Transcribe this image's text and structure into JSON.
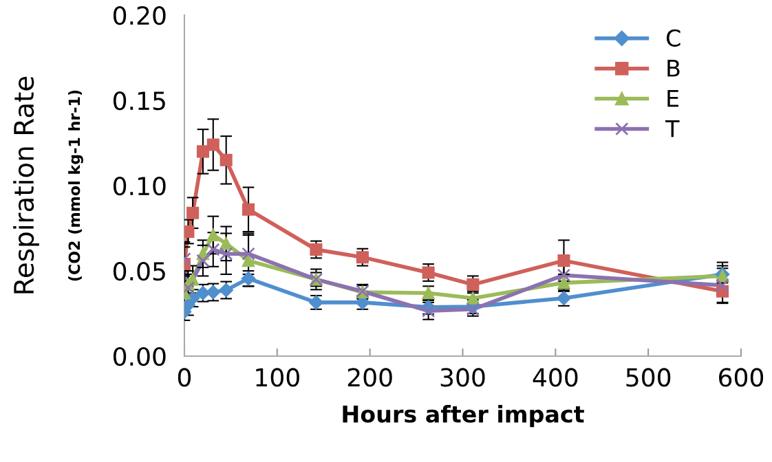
{
  "chart_data": {
    "type": "line",
    "xlabel": "Hours after impact",
    "ylabel": "Respiration Rate\n(CO2 (mmol kg-1 hr-1)",
    "xlim": [
      0,
      600
    ],
    "xticks": [
      0,
      100,
      200,
      300,
      400,
      500,
      600
    ],
    "ylim": [
      0,
      0.2
    ],
    "yticks": [
      {
        "value": 0,
        "label": "0.00"
      },
      {
        "value": 0.05,
        "label": "0.05"
      },
      {
        "value": 0.1,
        "label": "0.10"
      },
      {
        "value": 0.15,
        "label": "0.15"
      },
      {
        "value": 0.2,
        "label": "0.20"
      }
    ],
    "legend": "top right",
    "grid": false,
    "line_style": "solid",
    "series": [
      {
        "name": "C",
        "color": "#4f8fce",
        "marker": "diamond",
        "x": [
          0,
          4,
          9,
          20,
          31,
          45,
          69,
          142,
          192,
          263,
          311,
          409,
          580
        ],
        "values": [
          0.026,
          0.03,
          0.034,
          0.037,
          0.0375,
          0.0387,
          0.0455,
          0.0315,
          0.0315,
          0.0287,
          0.029,
          0.034,
          0.048
        ],
        "errors": [
          0.005,
          0.006,
          0.005,
          0.005,
          0.005,
          0.005,
          0.0045,
          0.004,
          0.004,
          0.004,
          0.004,
          0.0045,
          0.005
        ]
      },
      {
        "name": "B",
        "color": "#d0605a",
        "marker": "square",
        "x": [
          0,
          4,
          9,
          20,
          31,
          45,
          69,
          142,
          192,
          263,
          311,
          409,
          580
        ],
        "values": [
          0.054,
          0.073,
          0.084,
          0.12,
          0.124,
          0.115,
          0.086,
          0.0625,
          0.058,
          0.049,
          0.042,
          0.056,
          0.038
        ],
        "errors": [
          0.01,
          0.007,
          0.009,
          0.013,
          0.015,
          0.014,
          0.013,
          0.005,
          0.005,
          0.005,
          0.005,
          0.012,
          0.007
        ]
      },
      {
        "name": "E",
        "color": "#9bbb59",
        "marker": "triangle",
        "x": [
          0,
          4,
          9,
          20,
          31,
          45,
          69,
          142,
          192,
          263,
          311,
          409,
          580
        ],
        "values": [
          0.037,
          0.042,
          0.045,
          0.06,
          0.071,
          0.066,
          0.056,
          0.045,
          0.0375,
          0.037,
          0.034,
          0.043,
          0.047
        ],
        "errors": [
          0.007,
          0.008,
          0.008,
          0.008,
          0.011,
          0.01,
          0.015,
          0.006,
          0.004,
          0.004,
          0.004,
          0.005,
          0.008
        ]
      },
      {
        "name": "T",
        "color": "#8b72b0",
        "marker": "cross",
        "x": [
          0,
          4,
          20,
          31,
          45,
          69,
          142,
          192,
          263,
          311,
          409,
          580
        ],
        "values": [
          0.057,
          0.04,
          0.056,
          0.0625,
          0.06,
          0.06,
          0.045,
          0.038,
          0.0265,
          0.0275,
          0.0475,
          0.0415
        ],
        "errors": [
          0.01,
          0.008,
          0.009,
          0.01,
          0.012,
          0.012,
          0.004,
          0.004,
          0.005,
          0.004,
          0.008,
          0.01
        ]
      }
    ]
  }
}
